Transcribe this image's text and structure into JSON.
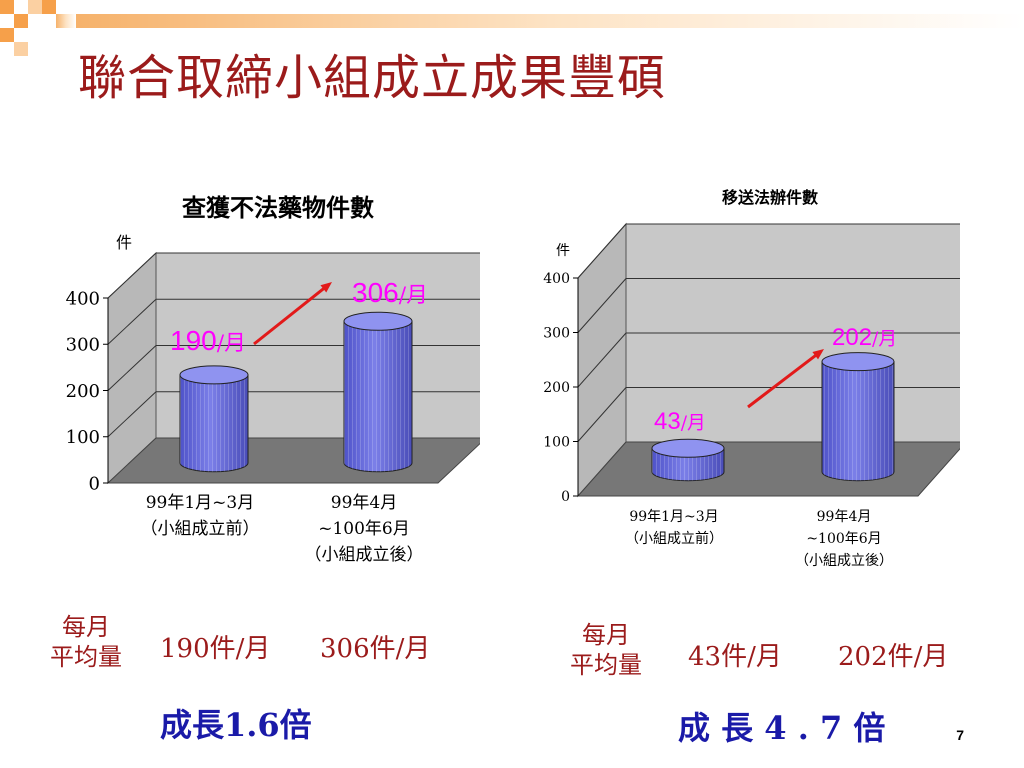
{
  "slide": {
    "title": "聯合取締小組成立成果豐碩",
    "page_number": "7"
  },
  "colors": {
    "title": "#9b1b1b",
    "bar": "#7b7fe8",
    "annotation": "#ff00ff",
    "arrow": "#e21a1a",
    "growth": "#1a1aa8"
  },
  "chart_data": [
    {
      "type": "bar",
      "title": "查獲不法藥物件數",
      "ylabel": "件",
      "ylim": [
        0,
        400
      ],
      "yticks": [
        "0",
        "100",
        "200",
        "300",
        "400"
      ],
      "categories": [
        [
          "99年1月~3月",
          "（小組成立前）"
        ],
        [
          "99年4月",
          "~100年6月",
          "（小組成立後）"
        ]
      ],
      "values": [
        190,
        306
      ],
      "annotations": [
        {
          "num": "190",
          "unit": "/月"
        },
        {
          "num": "306",
          "unit": "/月"
        }
      ],
      "grid": true
    },
    {
      "type": "bar",
      "title": "移送法辦件數",
      "ylabel": "件",
      "ylim": [
        0,
        400
      ],
      "yticks": [
        "0",
        "100",
        "200",
        "300",
        "400"
      ],
      "categories": [
        [
          "99年1月~3月",
          "（小組成立前）"
        ],
        [
          "99年4月",
          "~100年6月",
          "（小組成立後）"
        ]
      ],
      "values": [
        43,
        202
      ],
      "annotations": [
        {
          "num": "43",
          "unit": "/月"
        },
        {
          "num": "202",
          "unit": "/月"
        }
      ],
      "grid": true
    }
  ],
  "summary": [
    {
      "label_line1": "每月",
      "label_line2": "平均量",
      "before": "190件/月",
      "after": "306件/月",
      "growth": "成長1.6倍"
    },
    {
      "label_line1": "每月",
      "label_line2": "平均量",
      "before": "43件/月",
      "after": "202件/月",
      "growth": "成 長 4 . 7 倍"
    }
  ]
}
